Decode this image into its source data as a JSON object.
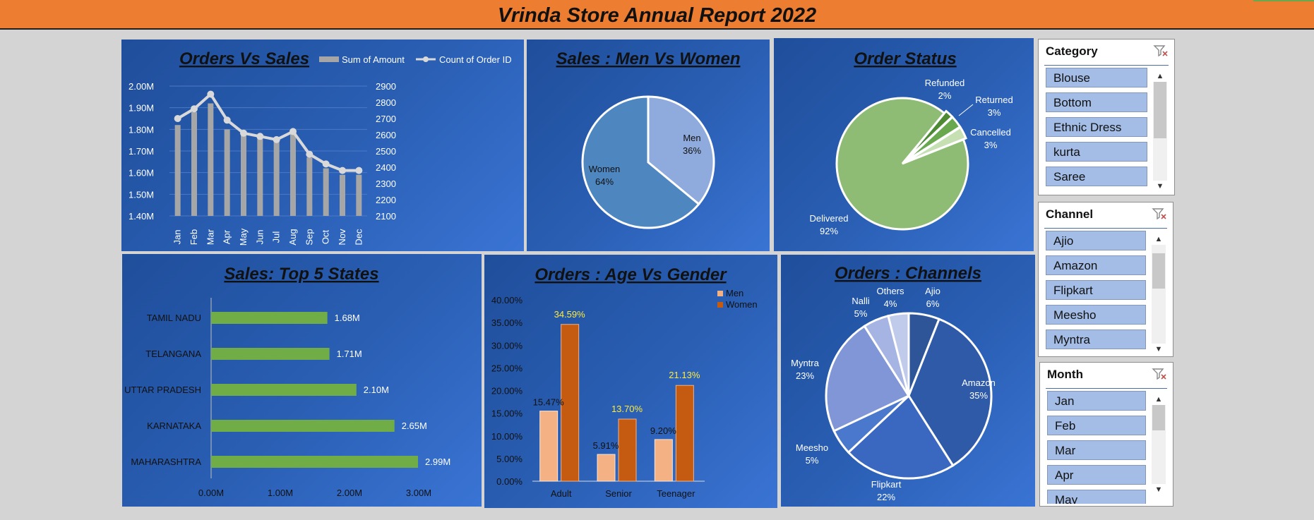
{
  "report": {
    "title": "Vrinda Store Annual Report 2022"
  },
  "colors": {
    "header": "#ed7d31",
    "panel": "#2a5fb4",
    "green_bar": "#70ad47",
    "men_bar": "#f4b183",
    "women_bar": "#c55a11"
  },
  "chart_data": [
    {
      "id": "orders_vs_sales",
      "type": "line",
      "title": "Orders Vs Sales",
      "categories": [
        "Jan",
        "Feb",
        "Mar",
        "Apr",
        "May",
        "Jun",
        "Jul",
        "Aug",
        "Sep",
        "Oct",
        "Nov",
        "Dec"
      ],
      "series": [
        {
          "name": "Sum of Amount",
          "kind": "bar",
          "axis": "left",
          "values": [
            1.82,
            1.88,
            1.92,
            1.8,
            1.78,
            1.77,
            1.75,
            1.78,
            1.67,
            1.62,
            1.59,
            1.59
          ]
        },
        {
          "name": "Count of Order ID",
          "kind": "line",
          "axis": "right",
          "values": [
            2700,
            2760,
            2850,
            2690,
            2610,
            2590,
            2570,
            2620,
            2480,
            2420,
            2380,
            2380
          ]
        }
      ],
      "y_left": {
        "ticks": [
          "2.00M",
          "1.90M",
          "1.80M",
          "1.70M",
          "1.60M",
          "1.50M",
          "1.40M"
        ],
        "min": 1.4,
        "max": 2.0
      },
      "y_right": {
        "ticks": [
          "2900",
          "2800",
          "2700",
          "2600",
          "2500",
          "2400",
          "2300",
          "2200",
          "2100"
        ],
        "min": 2100,
        "max": 2900
      },
      "legend": "top-right"
    },
    {
      "id": "sales_men_women",
      "type": "pie",
      "title": "Sales : Men Vs Women",
      "slices": [
        {
          "label": "Men",
          "pct": "36%",
          "value": 36,
          "color": "#8faadc"
        },
        {
          "label": "Women",
          "pct": "64%",
          "value": 64,
          "color": "#4e86c0"
        }
      ]
    },
    {
      "id": "order_status",
      "type": "pie",
      "title": "Order Status",
      "slices": [
        {
          "label": "Delivered",
          "pct": "92%",
          "value": 92,
          "color": "#8fbc74"
        },
        {
          "label": "Refunded",
          "pct": "2%",
          "value": 2,
          "color": "#4e8a34"
        },
        {
          "label": "Returned",
          "pct": "3%",
          "value": 3,
          "color": "#6aa84f"
        },
        {
          "label": "Cancelled",
          "pct": "3%",
          "value": 3,
          "color": "#c6e0b4"
        }
      ]
    },
    {
      "id": "top_states",
      "type": "bar",
      "orientation": "horizontal",
      "title": "Sales: Top 5 States",
      "categories": [
        "TAMIL NADU",
        "TELANGANA",
        "UTTAR PRADESH",
        "KARNATAKA",
        "MAHARASHTRA"
      ],
      "values": [
        1.68,
        1.71,
        2.1,
        2.65,
        2.99
      ],
      "value_labels": [
        "1.68M",
        "1.71M",
        "2.10M",
        "2.65M",
        "2.99M"
      ],
      "x_ticks": [
        "0.00M",
        "1.00M",
        "2.00M",
        "3.00M"
      ],
      "xlim": [
        0,
        3.0
      ]
    },
    {
      "id": "age_gender",
      "type": "bar",
      "title": "Orders : Age Vs Gender",
      "categories": [
        "Adult",
        "Senior",
        "Teenager"
      ],
      "series": [
        {
          "name": "Men",
          "values": [
            15.47,
            5.91,
            9.2
          ],
          "labels": [
            "15.47%",
            "5.91%",
            "9.20%"
          ]
        },
        {
          "name": "Women",
          "values": [
            34.59,
            13.7,
            21.13
          ],
          "labels": [
            "34.59%",
            "13.70%",
            "21.13%"
          ]
        }
      ],
      "y_ticks": [
        "40.00%",
        "35.00%",
        "30.00%",
        "25.00%",
        "20.00%",
        "15.00%",
        "10.00%",
        "5.00%",
        "0.00%"
      ],
      "ylim": [
        0,
        40
      ],
      "legend": "top-right"
    },
    {
      "id": "channels",
      "type": "pie",
      "title": "Orders : Channels",
      "slices": [
        {
          "label": "Ajio",
          "pct": "6%",
          "value": 6,
          "color": "#2e5597"
        },
        {
          "label": "Amazon",
          "pct": "35%",
          "value": 35,
          "color": "#2f5aa8"
        },
        {
          "label": "Flipkart",
          "pct": "22%",
          "value": 22,
          "color": "#3a68c0"
        },
        {
          "label": "Meesho",
          "pct": "5%",
          "value": 5,
          "color": "#4a78cc"
        },
        {
          "label": "Myntra",
          "pct": "23%",
          "value": 23,
          "color": "#8196d6"
        },
        {
          "label": "Nalli",
          "pct": "5%",
          "value": 5,
          "color": "#a5b4e2"
        },
        {
          "label": "Others",
          "pct": "4%",
          "value": 4,
          "color": "#c0cbec"
        }
      ]
    }
  ],
  "slicers": {
    "category": {
      "title": "Category",
      "items": [
        "Blouse",
        "Bottom",
        "Ethnic Dress",
        "kurta",
        "Saree"
      ],
      "icon": "filter-clear-icon"
    },
    "channel": {
      "title": "Channel",
      "items": [
        "Ajio",
        "Amazon",
        "Flipkart",
        "Meesho",
        "Myntra"
      ],
      "icon": "filter-clear-icon"
    },
    "month": {
      "title": "Month",
      "items": [
        "Jan",
        "Feb",
        "Mar",
        "Apr",
        "May"
      ],
      "icon": "filter-clear-icon"
    }
  }
}
